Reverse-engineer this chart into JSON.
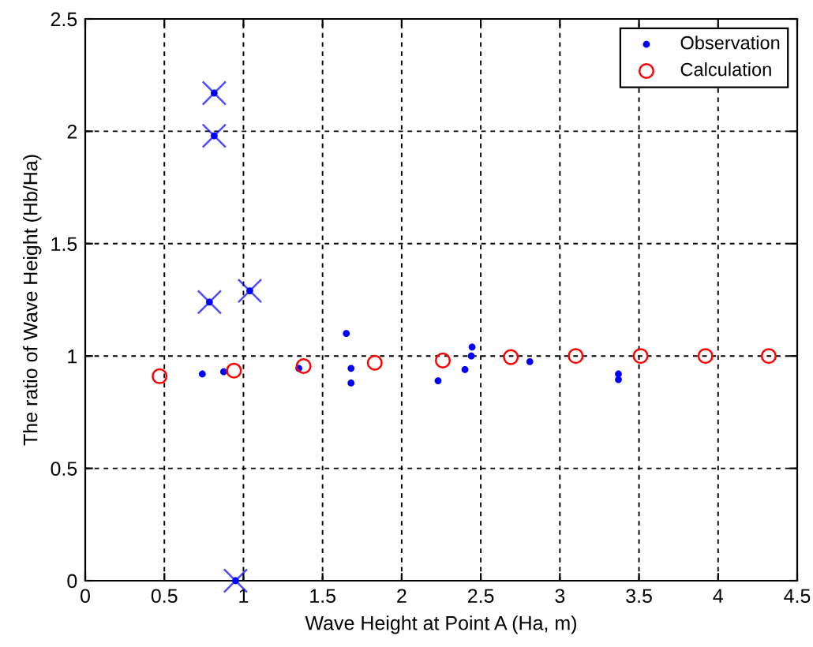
{
  "chart_data": {
    "type": "scatter",
    "xlabel": "Wave Height at Point A (Ha, m)",
    "ylabel": "The ratio of Wave Height (Hb/Ha)",
    "xlim": [
      0,
      4.5
    ],
    "ylim": [
      0,
      2.5
    ],
    "xticks": [
      0,
      0.5,
      1,
      1.5,
      2,
      2.5,
      3,
      3.5,
      4,
      4.5
    ],
    "yticks": [
      0,
      0.5,
      1,
      1.5,
      2,
      2.5
    ],
    "grid": true,
    "legend": "top right",
    "series": [
      {
        "name": "Observation",
        "color": "#0000ff",
        "marker": "circle",
        "x": [
          0.815,
          0.815,
          0.785,
          1.04,
          0.95,
          0.74,
          0.875,
          1.35,
          1.65,
          1.68,
          1.68,
          2.23,
          2.4,
          2.445,
          2.44,
          2.81,
          3.37,
          3.37
        ],
        "values": [
          2.17,
          1.98,
          1.24,
          1.29,
          0,
          0.92,
          0.93,
          0.945,
          1.1,
          0.945,
          0.88,
          0.89,
          0.94,
          1.04,
          1.0,
          0.975,
          0.92,
          0.895
        ]
      },
      {
        "name": "Calculation",
        "color": "#ff0000",
        "marker": "circle_open",
        "x": [
          0.47,
          0.94,
          1.38,
          1.83,
          2.26,
          2.69,
          3.1,
          3.51,
          3.92,
          4.32
        ],
        "values": [
          0.91,
          0.935,
          0.955,
          0.97,
          0.98,
          0.995,
          1.0,
          1.0,
          1.0,
          1.0
        ]
      },
      {
        "color": "#0000ff",
        "marker": "cross",
        "x": [
          0.815,
          0.815,
          0.785,
          1.04,
          0.95
        ],
        "values": [
          2.17,
          1.98,
          1.24,
          1.29,
          0
        ]
      }
    ]
  }
}
